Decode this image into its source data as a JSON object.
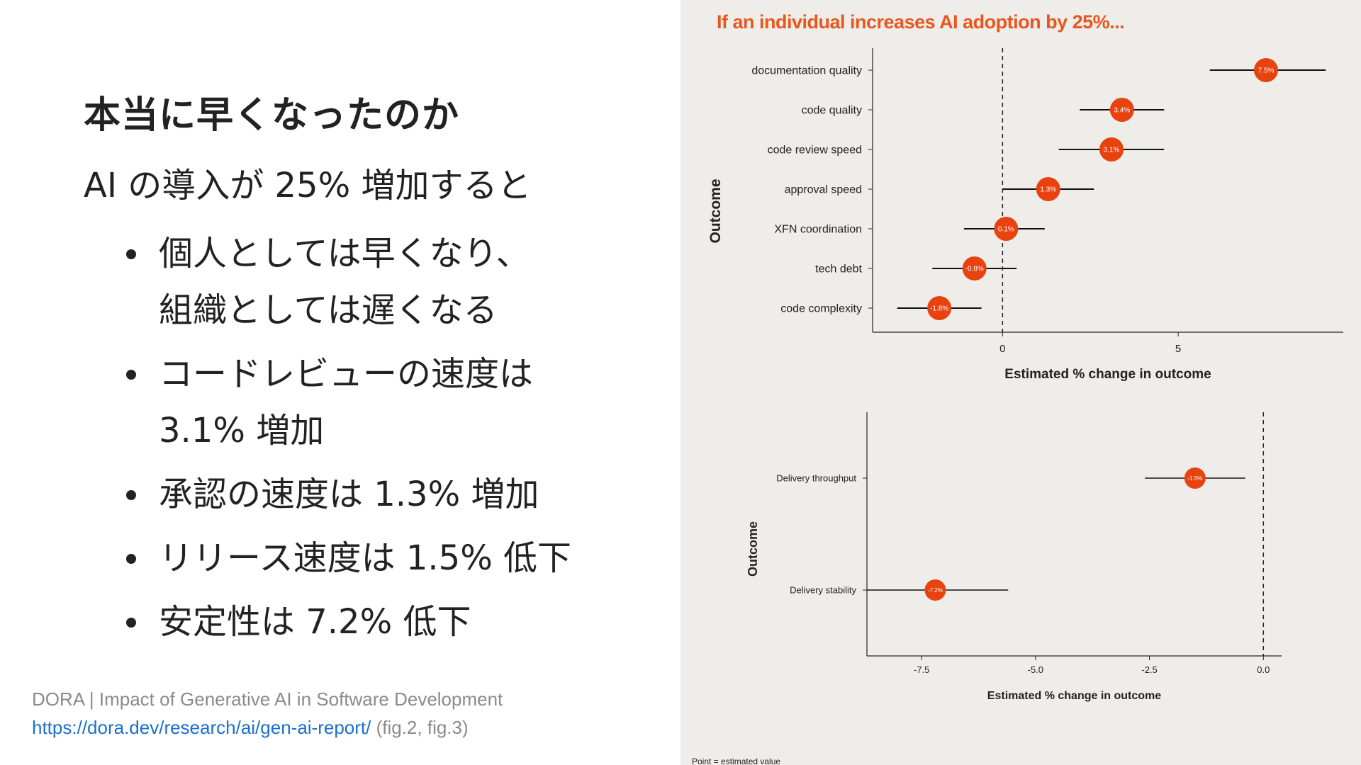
{
  "slide": {
    "title": "本当に早くなったのか",
    "lead": "AI の導入が 25% 増加すると",
    "bullets": [
      {
        "lines": [
          "個人としては早くなり、",
          "組織としては遅くなる"
        ]
      },
      {
        "lines": [
          "コードレビューの速度は",
          "3.1% 増加"
        ]
      },
      {
        "lines": [
          "承認の速度は 1.3% 増加"
        ]
      },
      {
        "lines": [
          "リリース速度は 1.5% 低下"
        ]
      },
      {
        "lines": [
          "安定性は 7.2% 低下"
        ]
      }
    ],
    "source": "DORA | Impact of Generative AI in Software Development",
    "link": "https://dora.dev/research/ai/gen-ai-report/",
    "fig_ref": "(fig.2, fig.3)"
  },
  "chart_heading": "If an individual increases AI adoption by 25%...",
  "footnote": "Point = estimated value",
  "colors": {
    "marker": "#e8420f",
    "heading": "#e8581e",
    "link": "#1a6fd0"
  },
  "chart_data": [
    {
      "type": "scatter",
      "subtype": "dot-and-whisker",
      "xlabel": "Estimated % change in outcome",
      "ylabel": "Outcome",
      "xlim": [
        -3.7,
        9.7
      ],
      "xticks": [
        0,
        5
      ],
      "reference_line_x": 0,
      "categories": [
        "documentation quality",
        "code quality",
        "code review speed",
        "approval speed",
        "XFN coordination",
        "tech debt",
        "code complexity"
      ],
      "values": [
        7.5,
        3.4,
        3.1,
        1.3,
        0.1,
        -0.8,
        -1.8
      ],
      "value_labels": [
        "7.5%",
        "3.4%",
        "3.1%",
        "1.3%",
        "0.1%",
        "-0.8%",
        "-1.8%"
      ],
      "ci_low": [
        5.9,
        2.2,
        1.6,
        0.0,
        -1.1,
        -2.0,
        -3.0
      ],
      "ci_high": [
        9.2,
        4.6,
        4.6,
        2.6,
        1.2,
        0.4,
        -0.6
      ]
    },
    {
      "type": "scatter",
      "subtype": "dot-and-whisker",
      "xlabel": "Estimated % change in outcome",
      "ylabel": "Outcome",
      "xlim": [
        -8.7,
        0.4
      ],
      "xticks": [
        -7.5,
        -5.0,
        -2.5,
        0.0
      ],
      "xtick_labels": [
        "-7.5",
        "-5.0",
        "-2.5",
        "0.0"
      ],
      "reference_line_x": 0,
      "categories": [
        "Delivery throughput",
        "Delivery stability"
      ],
      "values": [
        -1.5,
        -7.2
      ],
      "value_labels": [
        "-1.5%",
        "-7.2%"
      ],
      "ci_low": [
        -2.6,
        -8.7
      ],
      "ci_high": [
        -0.4,
        -5.6
      ]
    }
  ]
}
